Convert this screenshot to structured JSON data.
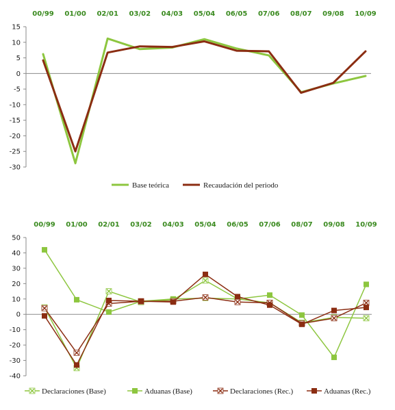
{
  "chart_data": [
    {
      "type": "line",
      "title": "",
      "xlabel": "",
      "ylabel": "",
      "categories": [
        "00/99",
        "01/00",
        "02/01",
        "03/02",
        "04/03",
        "05/04",
        "06/05",
        "07/06",
        "08/07",
        "09/08",
        "10/09"
      ],
      "ylim": [
        -30,
        15
      ],
      "yticks": [
        15,
        10,
        5,
        0,
        -5,
        -10,
        -15,
        -20,
        -25,
        -30
      ],
      "grid": false,
      "legend": "bottom",
      "series": [
        {
          "name": "Base teórica",
          "color": "#8dc63f",
          "values": [
            6.2,
            -28.8,
            11.2,
            7.8,
            8.3,
            11.0,
            8.0,
            5.8,
            -6.0,
            -3.2,
            -0.8
          ]
        },
        {
          "name": "Recaudación del periodo",
          "color": "#8b2d12",
          "values": [
            4.2,
            -25.0,
            6.7,
            8.7,
            8.5,
            10.3,
            7.3,
            7.1,
            -6.2,
            -3.0,
            7.1
          ]
        }
      ]
    },
    {
      "type": "line",
      "title": "",
      "xlabel": "",
      "ylabel": "",
      "categories": [
        "00/99",
        "01/00",
        "02/01",
        "03/02",
        "04/03",
        "05/04",
        "06/05",
        "07/06",
        "08/07",
        "09/08",
        "10/09"
      ],
      "ylim": [
        -40,
        50
      ],
      "yticks": [
        50,
        40,
        30,
        20,
        10,
        0,
        -10,
        -20,
        -30,
        -40
      ],
      "grid": false,
      "legend": "bottom",
      "series": [
        {
          "name": "Declaraciones (Base)",
          "color": "#8dc63f",
          "marker": "x",
          "values": [
            4.5,
            -35.0,
            15.0,
            8.0,
            9.5,
            22.0,
            10.0,
            7.5,
            -5.5,
            -2.0,
            -2.5
          ]
        },
        {
          "name": "Aduanas (Base)",
          "color": "#8dc63f",
          "marker": "square",
          "values": [
            42.0,
            9.5,
            1.5,
            8.5,
            10.0,
            10.5,
            10.0,
            12.5,
            -0.5,
            -28.0,
            19.5
          ]
        },
        {
          "name": "Declaraciones (Rec.)",
          "color": "#8b2d12",
          "marker": "x",
          "values": [
            4.0,
            -25.0,
            7.0,
            8.5,
            8.5,
            11.0,
            8.0,
            7.5,
            -6.0,
            -2.5,
            7.5
          ]
        },
        {
          "name": "Aduanas (Rec.)",
          "color": "#8b2d12",
          "marker": "square",
          "values": [
            -1.0,
            -33.0,
            9.0,
            8.5,
            8.0,
            26.0,
            11.5,
            6.0,
            -6.5,
            2.5,
            4.5
          ]
        }
      ]
    }
  ]
}
